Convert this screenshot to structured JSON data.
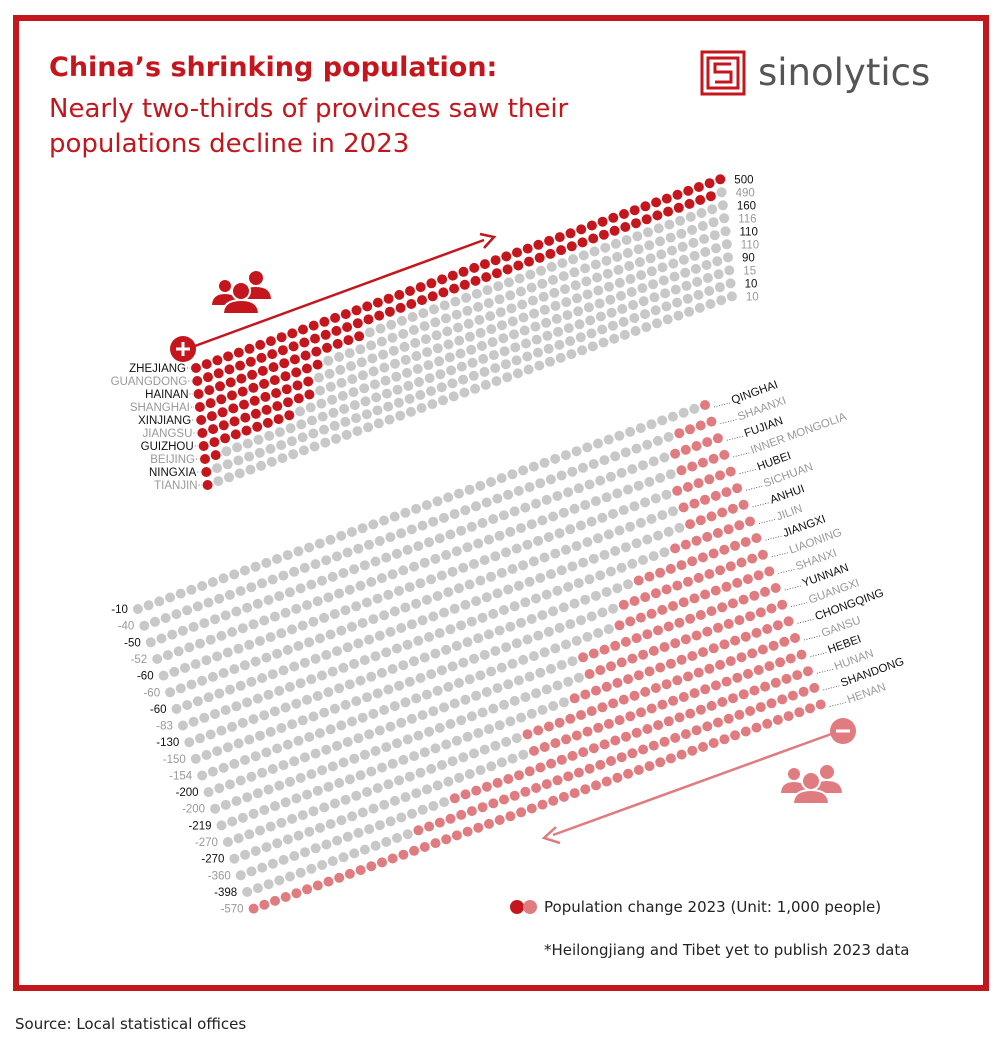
{
  "title": "China’s shrinking population:",
  "subtitle": "Nearly two-thirds of provinces saw their populations decline in 2023",
  "brand": {
    "name": "sinolytics",
    "color": "#c4161c"
  },
  "legend": "Population change 2023 (Unit: 1,000 people)",
  "note": "*Heilongjiang and Tibet yet to publish 2023 data",
  "source": "Source: Local statistical offices",
  "colors": {
    "positive": "#c4161c",
    "negative": "#e07b80",
    "grey": "#c8c8c8",
    "label_dark": "#111111",
    "label_light": "#999999"
  },
  "icons": {
    "increase": "people-group-icon",
    "decrease": "people-group-icon",
    "plus": "plus-circle-icon",
    "minus": "minus-circle-icon"
  },
  "chart_data": {
    "type": "dot-matrix",
    "unit": "1,000 people",
    "increase": [
      {
        "province": "ZHEJIANG",
        "value": 500
      },
      {
        "province": "GUANGDONG",
        "value": 490
      },
      {
        "province": "HAINAN",
        "value": 160
      },
      {
        "province": "SHANGHAI",
        "value": 116
      },
      {
        "province": "XINJIANG",
        "value": 110
      },
      {
        "province": "JIANGSU",
        "value": 110
      },
      {
        "province": "GUIZHOU",
        "value": 90
      },
      {
        "province": "BEIJING",
        "value": 15
      },
      {
        "province": "NINGXIA",
        "value": 10
      },
      {
        "province": "TIANJIN",
        "value": 10
      }
    ],
    "decrease": [
      {
        "province": "QINGHAI",
        "value": -10
      },
      {
        "province": "SHAANXI",
        "value": -40
      },
      {
        "province": "FUJIAN",
        "value": -50
      },
      {
        "province": "INNER MONGOLIA",
        "value": -52
      },
      {
        "province": "HUBEI",
        "value": -60
      },
      {
        "province": "SICHUAN",
        "value": -60
      },
      {
        "province": "ANHUI",
        "value": -60
      },
      {
        "province": "JILIN",
        "value": -83
      },
      {
        "province": "JIANGXI",
        "value": -130
      },
      {
        "province": "LIAONING",
        "value": -150
      },
      {
        "province": "SHANXI",
        "value": -154
      },
      {
        "province": "YUNNAN",
        "value": -200
      },
      {
        "province": "GUANGXI",
        "value": -200
      },
      {
        "province": "CHONGQING",
        "value": -219
      },
      {
        "province": "GANSU",
        "value": -270
      },
      {
        "province": "HEBEI",
        "value": -270
      },
      {
        "province": "HUNAN",
        "value": -360
      },
      {
        "province": "SHANDONG",
        "value": -398
      },
      {
        "province": "HENAN",
        "value": -570
      }
    ]
  }
}
